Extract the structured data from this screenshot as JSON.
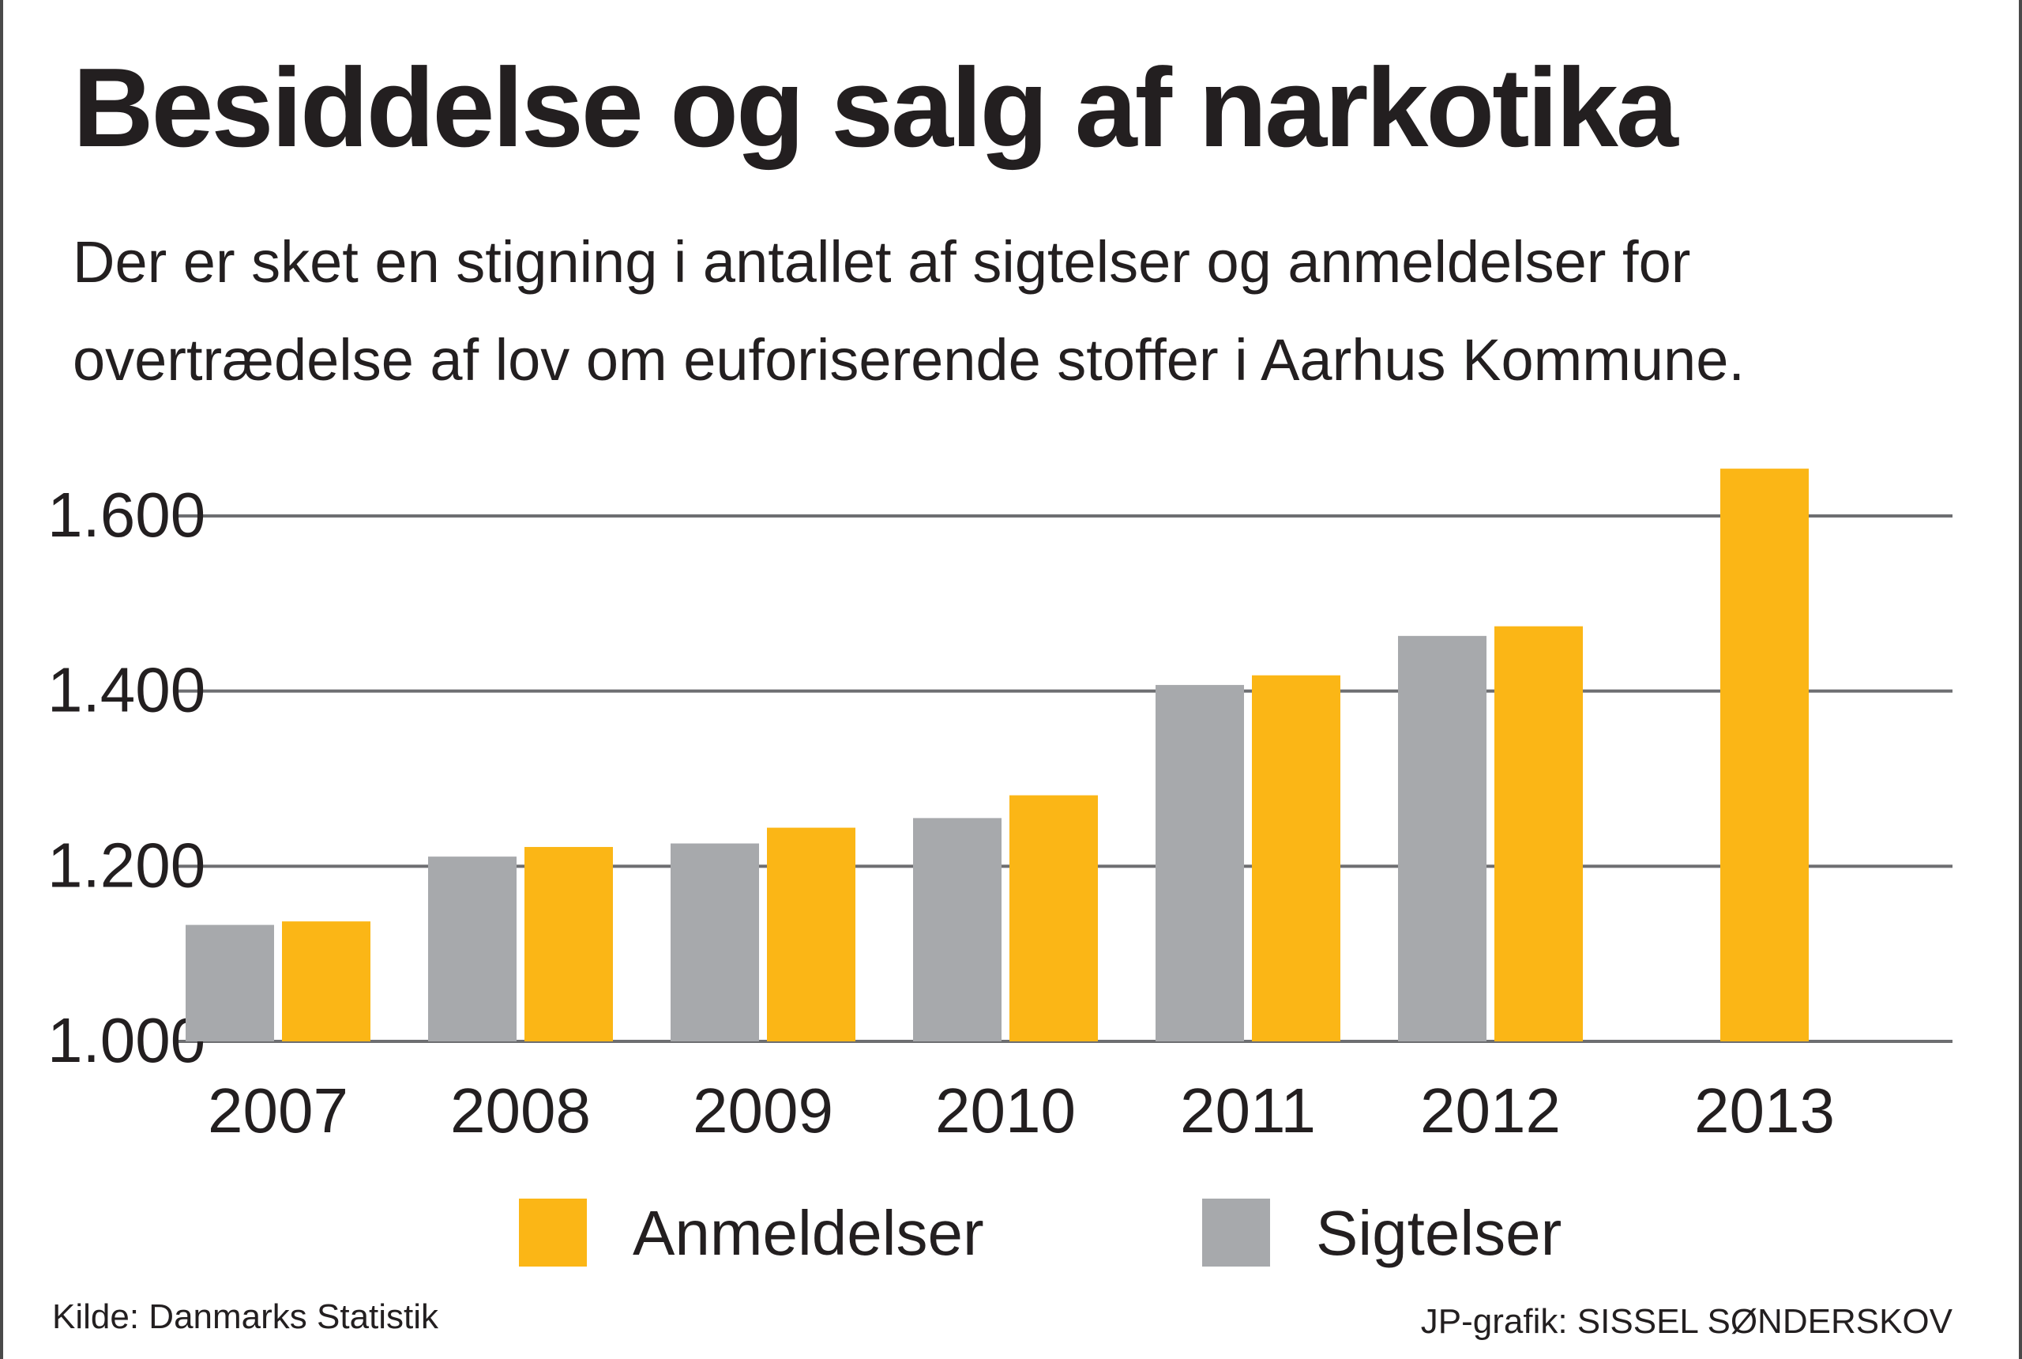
{
  "header": {
    "title": "Besiddelse og salg af narkotika",
    "subtitle": "Der er sket en stigning i antallet af sigtelser og anmeldelser for overtrædelse af lov om euforiserende stoffer i Aarhus Kommune."
  },
  "footer": {
    "source": "Kilde: Danmarks Statistik",
    "credit": "JP-grafik: SISSEL SØNDERSKOV"
  },
  "colors": {
    "anmeldelser": "#fbb616",
    "sigtelser": "#a7a9ac",
    "gridline": "#6d6e71",
    "text": "#231f20"
  },
  "chart_data": {
    "type": "bar",
    "title": "Besiddelse og salg af narkotika",
    "xlabel": "",
    "ylabel": "",
    "categories": [
      "2007",
      "2008",
      "2009",
      "2010",
      "2011",
      "2012",
      "2013"
    ],
    "series": [
      {
        "name": "Sigtelser",
        "values": [
          1133,
          1211,
          1226,
          1255,
          1407,
          1463,
          null
        ]
      },
      {
        "name": "Anmeldelser",
        "values": [
          1137,
          1222,
          1244,
          1281,
          1418,
          1474,
          1654
        ]
      }
    ],
    "ylim": [
      1000,
      1600
    ],
    "yticks": [
      1000,
      1200,
      1400,
      1600
    ],
    "ytick_labels": [
      "1.000",
      "1.200",
      "1.400",
      "1.600"
    ],
    "legend": [
      {
        "name": "Anmeldelser",
        "color": "#fbb616"
      },
      {
        "name": "Sigtelser",
        "color": "#a7a9ac"
      }
    ],
    "legend_position": "bottom",
    "grid": true
  }
}
